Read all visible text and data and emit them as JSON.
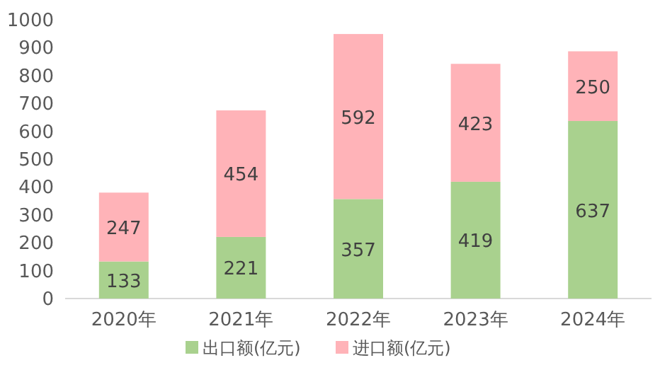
{
  "chart_data": {
    "type": "bar",
    "stacked": true,
    "categories": [
      "2020年",
      "2021年",
      "2022年",
      "2023年",
      "2024年"
    ],
    "series": [
      {
        "name": "出口额(亿元)",
        "color": "#a9d18e",
        "values": [
          133,
          221,
          357,
          419,
          637
        ]
      },
      {
        "name": "进口额(亿元)",
        "color": "#ffb3b8",
        "values": [
          247,
          454,
          592,
          423,
          250
        ]
      }
    ],
    "ylim": [
      0,
      1000
    ],
    "yticks": [
      0,
      100,
      200,
      300,
      400,
      500,
      600,
      700,
      800,
      900,
      1000
    ],
    "data_labels": true,
    "legend": "bottom",
    "grid": false
  }
}
